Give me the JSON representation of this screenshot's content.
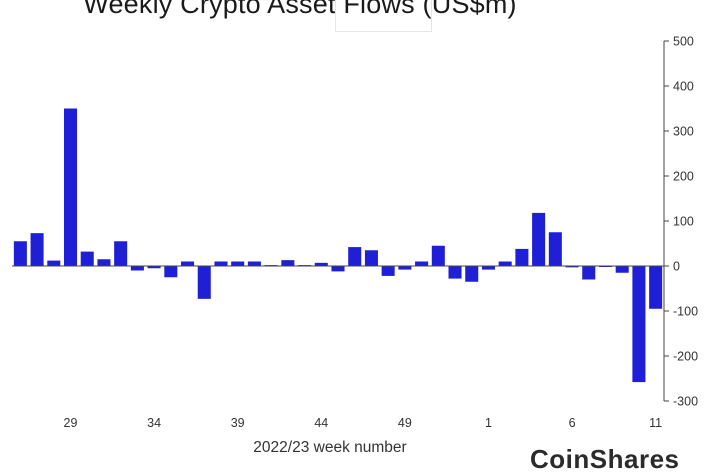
{
  "chart_data": {
    "type": "bar",
    "title": "Weekly Crypto Asset Flows (US$m)",
    "xlabel": "2022/23 week number",
    "ylabel": "",
    "ylim": [
      -300,
      500
    ],
    "yticks": [
      500,
      400,
      300,
      200,
      100,
      0,
      -100,
      -200,
      -300
    ],
    "yaxis_side": "right",
    "grid": false,
    "bar_color": "#1f1fd6",
    "x_tick_labels": [
      {
        "index": 3,
        "label": "29"
      },
      {
        "index": 8,
        "label": "34"
      },
      {
        "index": 13,
        "label": "39"
      },
      {
        "index": 18,
        "label": "44"
      },
      {
        "index": 23,
        "label": "49"
      },
      {
        "index": 28,
        "label": "1"
      },
      {
        "index": 33,
        "label": "6"
      },
      {
        "index": 38,
        "label": "11"
      }
    ],
    "values": [
      55,
      73,
      12,
      350,
      32,
      15,
      55,
      -10,
      -5,
      -25,
      10,
      -73,
      10,
      10,
      10,
      2,
      13,
      2,
      7,
      -12,
      42,
      35,
      -22,
      -8,
      10,
      45,
      -28,
      -35,
      -8,
      10,
      38,
      118,
      75,
      -3,
      -30,
      0,
      -15,
      -258,
      -95
    ]
  },
  "watermark": "CoinShares"
}
